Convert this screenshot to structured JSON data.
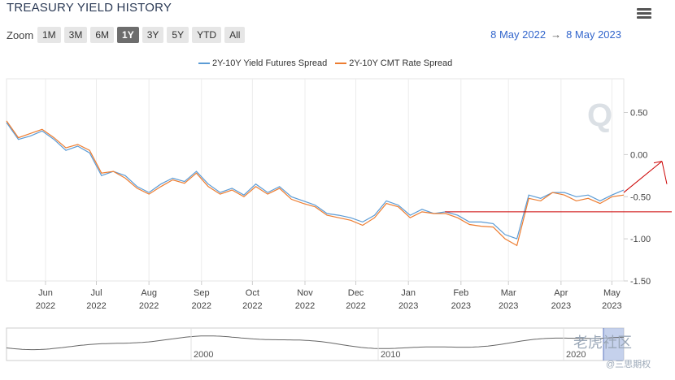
{
  "header": {
    "title": "TREASURY YIELD HISTORY",
    "menu_icon": "hamburger-menu-icon"
  },
  "zoom": {
    "label": "Zoom",
    "buttons": [
      "1M",
      "3M",
      "6M",
      "1Y",
      "3Y",
      "5Y",
      "YTD",
      "All"
    ],
    "active": "1Y"
  },
  "range": {
    "from": "8 May 2022",
    "arrow": "→",
    "to": "8 May 2023"
  },
  "colors": {
    "series1": "#5b9bd5",
    "series2": "#ed7d31",
    "annotation": "#cc0000"
  },
  "watermark": {
    "main": "老虎社区",
    "sub": "@三思期权"
  },
  "chart_data": {
    "type": "line",
    "title": "TREASURY YIELD HISTORY",
    "xlabel": "",
    "ylabel": "",
    "ylim": [
      -1.5,
      0.9
    ],
    "yticks": [
      "0.50",
      "0.00",
      "-0.50",
      "-1.00",
      "-1.50"
    ],
    "xticks": [
      {
        "month": "Jun",
        "year": "2022"
      },
      {
        "month": "Jul",
        "year": "2022"
      },
      {
        "month": "Aug",
        "year": "2022"
      },
      {
        "month": "Sep",
        "year": "2022"
      },
      {
        "month": "Oct",
        "year": "2022"
      },
      {
        "month": "Nov",
        "year": "2022"
      },
      {
        "month": "Dec",
        "year": "2022"
      },
      {
        "month": "Jan",
        "year": "2023"
      },
      {
        "month": "Feb",
        "year": "2023"
      },
      {
        "month": "Mar",
        "year": "2023"
      },
      {
        "month": "Apr",
        "year": "2023"
      },
      {
        "month": "May",
        "year": "2023"
      }
    ],
    "x": [
      "2022-05-09",
      "2022-05-16",
      "2022-05-23",
      "2022-05-30",
      "2022-06-06",
      "2022-06-13",
      "2022-06-20",
      "2022-06-27",
      "2022-07-04",
      "2022-07-11",
      "2022-07-18",
      "2022-07-25",
      "2022-08-01",
      "2022-08-08",
      "2022-08-15",
      "2022-08-22",
      "2022-08-29",
      "2022-09-05",
      "2022-09-12",
      "2022-09-19",
      "2022-09-26",
      "2022-10-03",
      "2022-10-10",
      "2022-10-17",
      "2022-10-24",
      "2022-10-31",
      "2022-11-07",
      "2022-11-14",
      "2022-11-21",
      "2022-11-28",
      "2022-12-05",
      "2022-12-12",
      "2022-12-19",
      "2022-12-26",
      "2023-01-02",
      "2023-01-09",
      "2023-01-16",
      "2023-01-23",
      "2023-01-30",
      "2023-02-06",
      "2023-02-13",
      "2023-02-20",
      "2023-02-27",
      "2023-03-06",
      "2023-03-13",
      "2023-03-20",
      "2023-03-27",
      "2023-04-03",
      "2023-04-10",
      "2023-04-17",
      "2023-04-24",
      "2023-05-01",
      "2023-05-08"
    ],
    "series": [
      {
        "name": "2Y-10Y Yield Futures Spread",
        "values": [
          0.38,
          0.18,
          0.22,
          0.28,
          0.18,
          0.05,
          0.1,
          0.02,
          -0.25,
          -0.2,
          -0.25,
          -0.38,
          -0.45,
          -0.35,
          -0.28,
          -0.32,
          -0.2,
          -0.35,
          -0.45,
          -0.4,
          -0.48,
          -0.35,
          -0.45,
          -0.38,
          -0.5,
          -0.55,
          -0.6,
          -0.7,
          -0.72,
          -0.75,
          -0.8,
          -0.72,
          -0.55,
          -0.6,
          -0.72,
          -0.65,
          -0.7,
          -0.68,
          -0.72,
          -0.8,
          -0.8,
          -0.82,
          -0.95,
          -1.0,
          -0.48,
          -0.52,
          -0.45,
          -0.45,
          -0.5,
          -0.48,
          -0.55,
          -0.48,
          -0.42
        ]
      },
      {
        "name": "2Y-10Y CMT Rate Spread",
        "values": [
          0.4,
          0.2,
          0.25,
          0.3,
          0.2,
          0.08,
          0.12,
          0.05,
          -0.22,
          -0.2,
          -0.28,
          -0.4,
          -0.47,
          -0.38,
          -0.3,
          -0.34,
          -0.22,
          -0.38,
          -0.47,
          -0.42,
          -0.5,
          -0.38,
          -0.47,
          -0.4,
          -0.53,
          -0.58,
          -0.62,
          -0.72,
          -0.75,
          -0.78,
          -0.84,
          -0.75,
          -0.58,
          -0.62,
          -0.75,
          -0.68,
          -0.7,
          -0.7,
          -0.75,
          -0.83,
          -0.85,
          -0.86,
          -1.0,
          -1.08,
          -0.52,
          -0.55,
          -0.45,
          -0.48,
          -0.55,
          -0.52,
          -0.58,
          -0.5,
          -0.48
        ]
      }
    ],
    "navigator": {
      "labels": [
        "2000",
        "2010",
        "2020"
      ]
    },
    "annotations": [
      {
        "type": "horizontal-line",
        "y": -0.68
      },
      {
        "type": "arrow",
        "direction": "up-right"
      }
    ]
  }
}
